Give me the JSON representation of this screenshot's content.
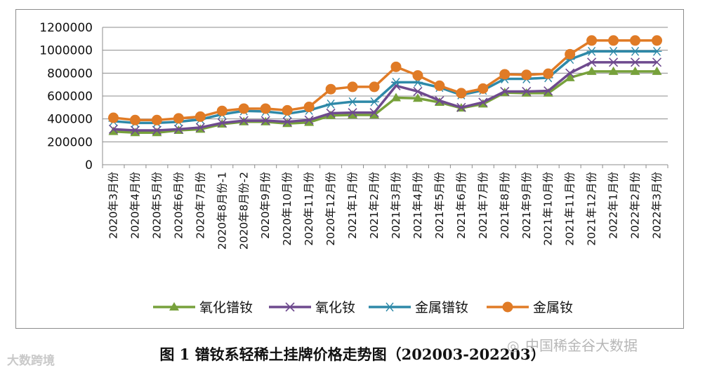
{
  "chart_data": {
    "type": "line",
    "title": "图 1  镨钕系轻稀土挂牌价格走势图（202003-202203）",
    "xlabel": "",
    "ylabel": "",
    "ylim": [
      0,
      1200000
    ],
    "yticks": [
      "0",
      "200000",
      "400000",
      "600000",
      "800000",
      "1000000",
      "1200000"
    ],
    "grid": true,
    "legend_position": "bottom",
    "categories": [
      "2020年3月份",
      "2020年4月份",
      "2020年5月份",
      "2020年6月份",
      "2020年7月份",
      "2020年8月份-1",
      "2020年8月份-2",
      "2020年9月份",
      "2020年10月份",
      "2020年11月份",
      "2020年12月份",
      "2021年1月份",
      "2021年2月份",
      "2021年3月份",
      "2021年4月份",
      "2021年5月份",
      "2021年6月份",
      "2021年7月份",
      "2021年8月份",
      "2021年9月份",
      "2021年10月份",
      "2021年11月份",
      "2021年12月份",
      "2022年1月份",
      "2022年2月份",
      "2022年3月份"
    ],
    "series": [
      {
        "name": "氧化镨钕",
        "color": "#77a13b",
        "marker": "triangle",
        "values": [
          290000,
          280000,
          280000,
          300000,
          310000,
          355000,
          375000,
          375000,
          360000,
          370000,
          430000,
          435000,
          435000,
          585000,
          580000,
          545000,
          495000,
          530000,
          630000,
          625000,
          625000,
          760000,
          815000,
          815000,
          815000,
          815000
        ]
      },
      {
        "name": "氧化钕",
        "color": "#6e4a8e",
        "marker": "x",
        "values": [
          310000,
          300000,
          300000,
          310000,
          325000,
          365000,
          385000,
          385000,
          375000,
          390000,
          450000,
          455000,
          455000,
          690000,
          640000,
          560000,
          500000,
          545000,
          640000,
          640000,
          645000,
          800000,
          895000,
          895000,
          895000,
          895000
        ]
      },
      {
        "name": "金属镨钕",
        "color": "#2e89a8",
        "marker": "asterisk",
        "values": [
          380000,
          365000,
          365000,
          375000,
          395000,
          440000,
          470000,
          465000,
          445000,
          475000,
          530000,
          550000,
          550000,
          720000,
          720000,
          675000,
          610000,
          650000,
          750000,
          750000,
          760000,
          920000,
          990000,
          990000,
          990000,
          990000
        ]
      },
      {
        "name": "金属钕",
        "color": "#e07b26",
        "marker": "circle",
        "values": [
          410000,
          390000,
          390000,
          405000,
          420000,
          470000,
          490000,
          490000,
          475000,
          505000,
          660000,
          680000,
          680000,
          855000,
          780000,
          690000,
          625000,
          665000,
          790000,
          785000,
          795000,
          965000,
          1085000,
          1085000,
          1085000,
          1085000
        ]
      }
    ]
  },
  "watermarks": {
    "left": "大数跨境",
    "right": "中国稀金谷大数据"
  }
}
